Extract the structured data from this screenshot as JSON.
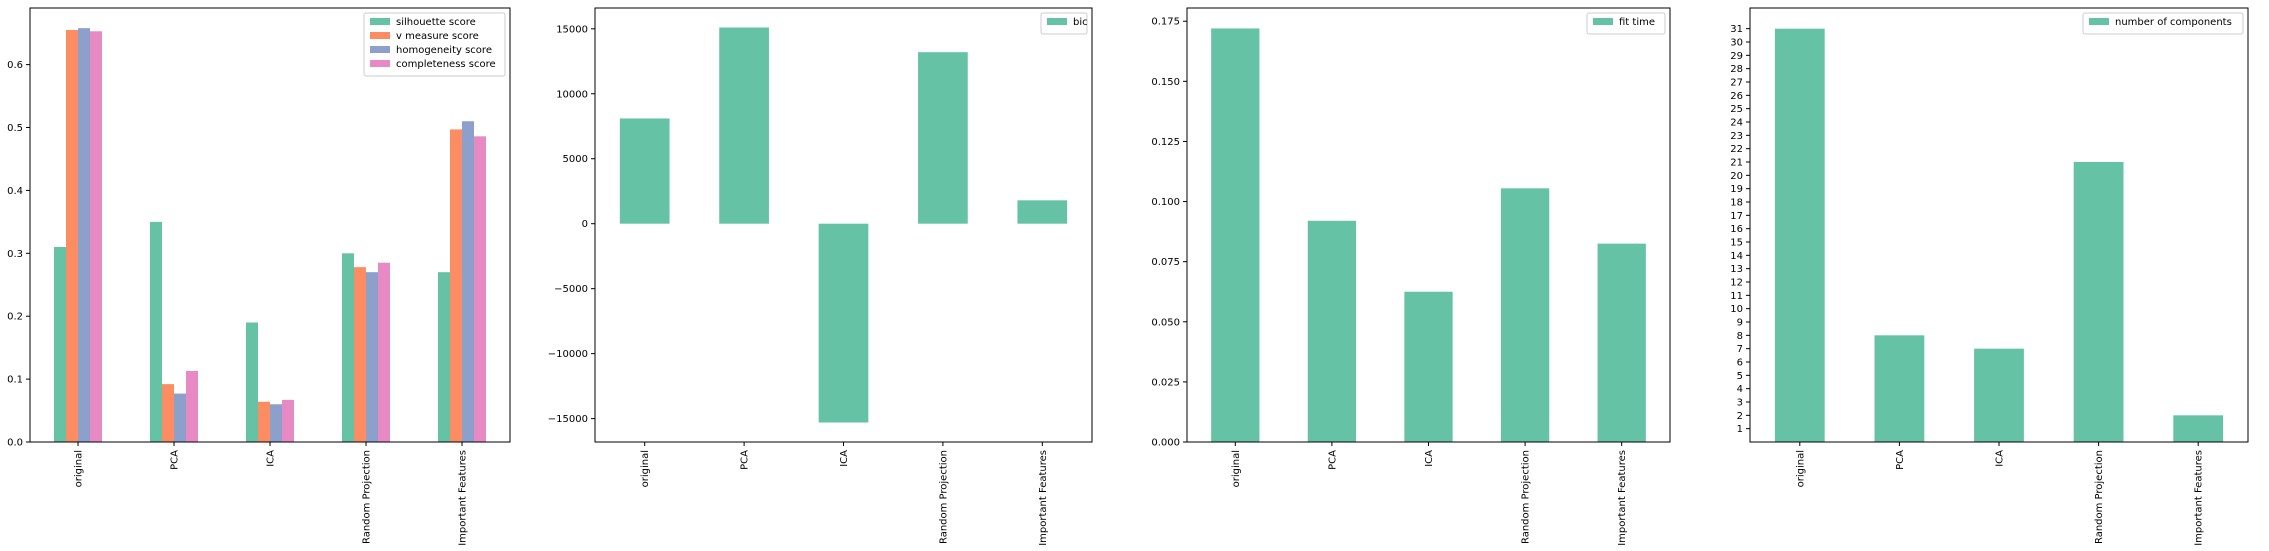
{
  "chart_data": [
    {
      "type": "bar",
      "categories": [
        "original",
        "PCA",
        "ICA",
        "Random Projection",
        "Important Features"
      ],
      "series": [
        {
          "name": "silhouette score",
          "color": "#66c2a5",
          "values": [
            0.31,
            0.35,
            0.19,
            0.3,
            0.27
          ]
        },
        {
          "name": "v measure score",
          "color": "#fc8d62",
          "values": [
            0.655,
            0.092,
            0.064,
            0.278,
            0.497
          ]
        },
        {
          "name": "homogeneity score",
          "color": "#8da0cb",
          "values": [
            0.658,
            0.077,
            0.06,
            0.27,
            0.51
          ]
        },
        {
          "name": "completeness score",
          "color": "#e78ac3",
          "values": [
            0.653,
            0.113,
            0.067,
            0.285,
            0.486
          ]
        }
      ],
      "ylim": [
        0,
        0.69
      ],
      "yticks": [
        "0.0",
        "0.1",
        "0.2",
        "0.3",
        "0.4",
        "0.5",
        "0.6"
      ],
      "legend_position": "upper-right"
    },
    {
      "type": "bar",
      "categories": [
        "original",
        "PCA",
        "ICA",
        "Random Projection",
        "Important Features"
      ],
      "series": [
        {
          "name": "bic",
          "color": "#66c2a5",
          "values": [
            8100,
            15100,
            -15300,
            13200,
            1800
          ]
        }
      ],
      "ylim": [
        -16800,
        16600
      ],
      "yticks": [
        "−15000",
        "−10000",
        "−5000",
        "0",
        "5000",
        "10000",
        "15000"
      ],
      "legend_position": "upper-right"
    },
    {
      "type": "bar",
      "categories": [
        "original",
        "PCA",
        "ICA",
        "Random Projection",
        "Important Features"
      ],
      "series": [
        {
          "name": "fit time",
          "color": "#66c2a5",
          "values": [
            0.172,
            0.092,
            0.0625,
            0.1055,
            0.0825
          ]
        }
      ],
      "ylim": [
        0,
        0.1805
      ],
      "yticks": [
        "0.000",
        "0.025",
        "0.050",
        "0.075",
        "0.100",
        "0.125",
        "0.150",
        "0.175"
      ],
      "legend_position": "upper-right"
    },
    {
      "type": "bar",
      "categories": [
        "original",
        "PCA",
        "ICA",
        "Random Projection",
        "Important Features"
      ],
      "series": [
        {
          "name": "number of components",
          "color": "#66c2a5",
          "values": [
            31,
            8,
            7,
            21,
            2
          ]
        }
      ],
      "ylim": [
        0,
        32.55
      ],
      "yticks": [
        "1",
        "2",
        "3",
        "4",
        "5",
        "6",
        "7",
        "8",
        "9",
        "10",
        "11",
        "12",
        "13",
        "14",
        "15",
        "16",
        "17",
        "18",
        "19",
        "20",
        "21",
        "22",
        "23",
        "24",
        "25",
        "26",
        "27",
        "28",
        "29",
        "30",
        "31"
      ],
      "legend_position": "upper-right"
    }
  ]
}
